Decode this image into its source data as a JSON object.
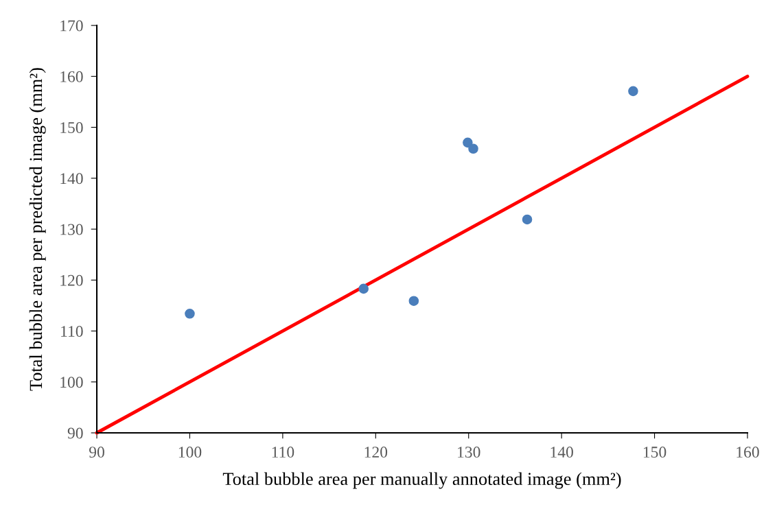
{
  "chart_data": {
    "type": "scatter",
    "xlabel": "Total bubble area per manually annotated image (mm²)",
    "ylabel": "Total bubble area per predicted image (mm²)",
    "xlim": [
      90,
      160
    ],
    "xticks": [
      90,
      100,
      110,
      120,
      130,
      140,
      150,
      160
    ],
    "ylim": [
      90,
      170
    ],
    "yticks": [
      90,
      100,
      110,
      120,
      130,
      140,
      150,
      160,
      170
    ],
    "grid": false,
    "legend": false,
    "series": [
      {
        "marker": "circle",
        "color": "#4a7ebb",
        "x": [
          100,
          118.7,
          124.1,
          129.9,
          130.5,
          136.3,
          147.7
        ],
        "values": [
          113.4,
          118.3,
          115.9,
          147.0,
          145.8,
          131.9,
          157.1
        ]
      },
      {
        "type": "line",
        "color": "#ff0000",
        "line_style": "solid",
        "x": [
          90,
          160
        ],
        "values": [
          90,
          160
        ]
      }
    ]
  }
}
